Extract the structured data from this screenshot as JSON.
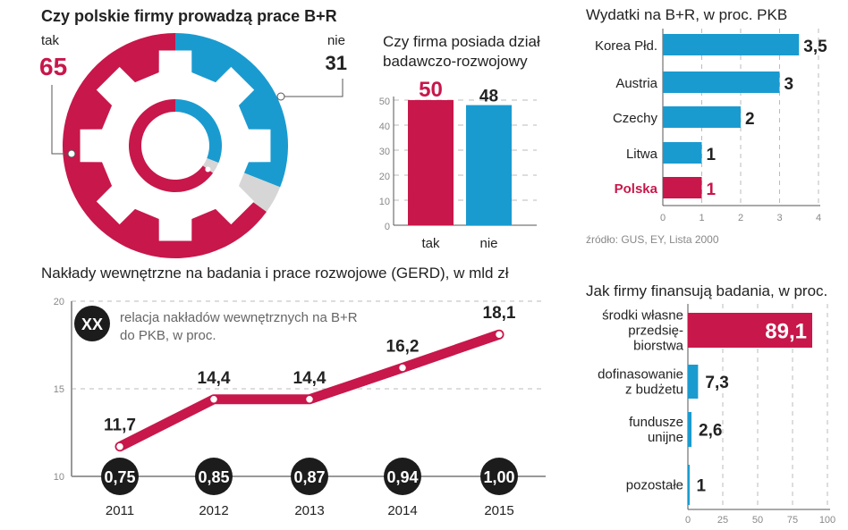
{
  "colors": {
    "red": "#c8174a",
    "blue": "#1a9bd0",
    "gray": "#d6d6d6",
    "dark": "#1c1c1c"
  },
  "chart_data": [
    {
      "id": "gear",
      "type": "pie",
      "title": "Czy polskie firmy prowadzą prace B+R",
      "slices": [
        {
          "label": "tak",
          "value": 65,
          "display": "65",
          "color": "#c8174a"
        },
        {
          "label": "nie",
          "value": 31,
          "display": "31",
          "color": "#1a9bd0"
        }
      ],
      "remainder_color": "#d6d6d6"
    },
    {
      "id": "dept",
      "type": "bar",
      "title_lines": [
        "Czy firma posiada dział",
        "badawczo-rozwojowy"
      ],
      "categories": [
        "tak",
        "nie"
      ],
      "values": [
        50,
        48
      ],
      "labels": [
        "50",
        "48"
      ],
      "colors": [
        "#c8174a",
        "#1a9bd0"
      ],
      "label_colors": [
        "#c8174a",
        "#222222"
      ],
      "ylim": [
        0,
        50
      ],
      "yticks": [
        "0",
        "10",
        "20",
        "30",
        "40",
        "50"
      ],
      "grid": true
    },
    {
      "id": "gdp",
      "type": "bar",
      "orientation": "horizontal",
      "title": "Wydatki na B+R, w proc. PKB",
      "categories": [
        "Korea Płd.",
        "Austria",
        "Czechy",
        "Litwa",
        "Polska"
      ],
      "values": [
        3.5,
        3,
        2,
        1,
        1
      ],
      "labels": [
        "3,5",
        "3",
        "2",
        "1",
        "1"
      ],
      "highlight": "Polska",
      "xlim": [
        0,
        4
      ],
      "xticks": [
        "0",
        "1",
        "2",
        "3",
        "4"
      ],
      "grid": true,
      "source": "źródło: GUS, EY, Lista 2000"
    },
    {
      "id": "gerd",
      "type": "line",
      "title": "Nakłady wewnętrzne na badania i prace rozwojowe (GERD), w mld zł",
      "x": [
        "2011",
        "2012",
        "2013",
        "2014",
        "2015"
      ],
      "values": [
        11.7,
        14.4,
        14.4,
        16.2,
        18.1
      ],
      "labels": [
        "11,7",
        "14,4",
        "14,4",
        "16,2",
        "18,1"
      ],
      "ratio_to_gdp": [
        "0,75",
        "0,85",
        "0,87",
        "0,94",
        "1,00"
      ],
      "ylim": [
        10,
        20
      ],
      "yticks": [
        "10",
        "15",
        "20"
      ],
      "legend": {
        "symbol": "XX",
        "lines": [
          "relacja nakładów wewnętrznych na B+R",
          "do PKB, w proc."
        ]
      },
      "grid": true
    },
    {
      "id": "funding",
      "type": "bar",
      "orientation": "horizontal",
      "title": "Jak firmy finansują badania, w proc.",
      "categories": [
        [
          "środki własne",
          "przedsię-",
          "biorstwa"
        ],
        [
          "dofinasowanie",
          "z budżetu"
        ],
        [
          "fundusze",
          "unijne"
        ],
        [
          "pozostałe"
        ]
      ],
      "values": [
        89.1,
        7.3,
        2.6,
        1
      ],
      "labels": [
        "89,1",
        "7,3",
        "2,6",
        "1"
      ],
      "xlim": [
        0,
        100
      ],
      "xticks": [
        "0",
        "25",
        "50",
        "75",
        "100"
      ],
      "grid": true
    }
  ]
}
